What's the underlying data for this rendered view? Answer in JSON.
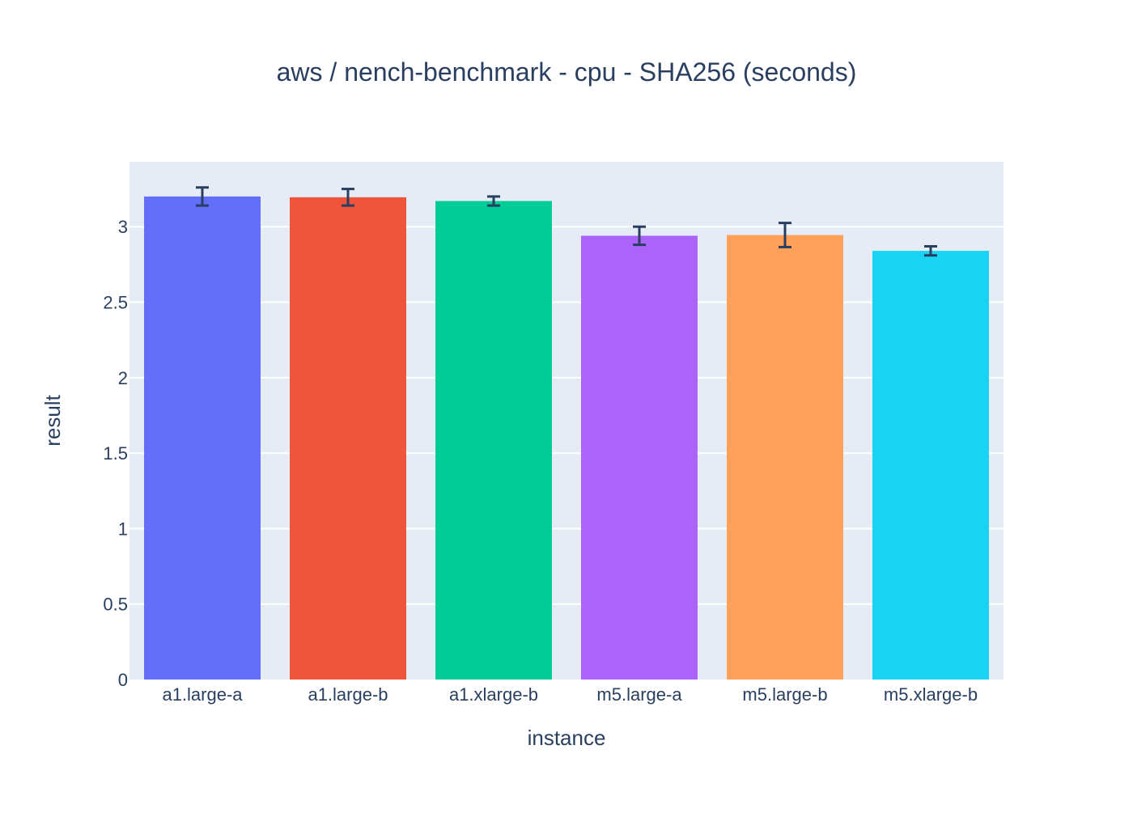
{
  "chart_data": {
    "type": "bar",
    "title": "aws / nench-benchmark - cpu - SHA256 (seconds)",
    "xlabel": "instance",
    "ylabel": "result",
    "categories": [
      "a1.large-a",
      "a1.large-b",
      "a1.xlarge-b",
      "m5.large-a",
      "m5.large-b",
      "m5.xlarge-b"
    ],
    "values": [
      3.2,
      3.195,
      3.17,
      2.94,
      2.945,
      2.84
    ],
    "error": [
      0.06,
      0.055,
      0.03,
      0.06,
      0.08,
      0.03
    ],
    "colors": [
      "#636efa",
      "#ef553b",
      "#00cc96",
      "#ab63fa",
      "#ffa15a",
      "#19d3f3"
    ],
    "ylim": [
      0,
      3.43
    ],
    "yticks": [
      0,
      0.5,
      1,
      1.5,
      2,
      2.5,
      3
    ],
    "ytick_labels": [
      "0",
      "0.5",
      "1",
      "1.5",
      "2",
      "2.5",
      "3"
    ],
    "grid": true,
    "plot_background": "#e5ecf6",
    "error_bar_color": "#2a3f5f"
  }
}
